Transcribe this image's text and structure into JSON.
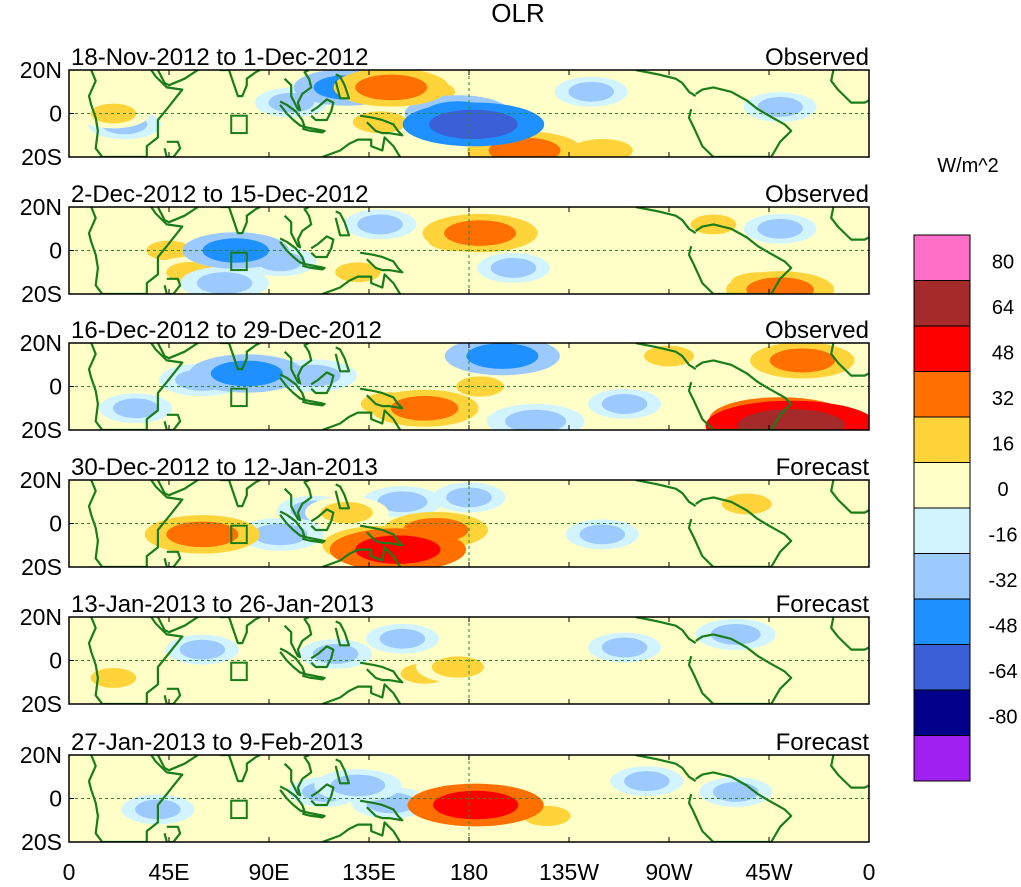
{
  "chart_data": {
    "type": "heatmap",
    "title": "OLR",
    "units_label": "W/m^2",
    "longitude_ticks": [
      "0",
      "45E",
      "90E",
      "135E",
      "180",
      "135W",
      "90W",
      "45W",
      "0"
    ],
    "longitude_values": [
      0,
      45,
      90,
      135,
      180,
      225,
      270,
      315,
      360
    ],
    "latitude_ticks": [
      "20N",
      "0",
      "20S"
    ],
    "latitude_values": [
      20,
      0,
      -20
    ],
    "xlim": [
      0,
      360
    ],
    "ylim": [
      -20,
      20
    ],
    "colorbar": {
      "levels": [
        "80",
        "64",
        "48",
        "32",
        "16",
        "0",
        "-16",
        "-32",
        "-48",
        "-64",
        "-80"
      ],
      "colors_top_to_bottom": [
        "#ff6ec7",
        "#a52a2a",
        "#ff0000",
        "#ff7000",
        "#ffd43a",
        "#ffffc8",
        "#d2f4ff",
        "#9ccaff",
        "#1e90ff",
        "#3a5fd6",
        "#00008b",
        "#a020f0"
      ]
    },
    "panels": [
      {
        "period": "18-Nov-2012 to 1-Dec-2012",
        "status": "Observed",
        "anomalies": [
          {
            "lon": 145,
            "lat": 12,
            "value": 40
          },
          {
            "lon": 160,
            "lat": 10,
            "value": 30
          },
          {
            "lon": 140,
            "lat": -4,
            "value": 24
          },
          {
            "lon": 165,
            "lat": -5,
            "value": 16
          },
          {
            "lon": 125,
            "lat": 12,
            "value": -35
          },
          {
            "lon": 175,
            "lat": 0,
            "value": -35
          },
          {
            "lon": 182,
            "lat": -5,
            "value": -55
          },
          {
            "lon": 205,
            "lat": -17,
            "value": 40
          },
          {
            "lon": 240,
            "lat": -17,
            "value": 30
          },
          {
            "lon": 235,
            "lat": 10,
            "value": -16
          },
          {
            "lon": 25,
            "lat": -5,
            "value": -16
          },
          {
            "lon": 20,
            "lat": 0,
            "value": 16
          },
          {
            "lon": 100,
            "lat": 5,
            "value": -16
          },
          {
            "lon": 320,
            "lat": 3,
            "value": -16
          }
        ]
      },
      {
        "period": "2-Dec-2012 to 15-Dec-2012",
        "status": "Observed",
        "anomalies": [
          {
            "lon": 175,
            "lat": 5,
            "value": 30
          },
          {
            "lon": 185,
            "lat": 8,
            "value": 40
          },
          {
            "lon": 75,
            "lat": 0,
            "value": -35
          },
          {
            "lon": 70,
            "lat": -15,
            "value": -25
          },
          {
            "lon": 95,
            "lat": -5,
            "value": -16
          },
          {
            "lon": 140,
            "lat": 12,
            "value": -16
          },
          {
            "lon": 45,
            "lat": 0,
            "value": 16
          },
          {
            "lon": 55,
            "lat": -10,
            "value": 20
          },
          {
            "lon": 130,
            "lat": -10,
            "value": 16
          },
          {
            "lon": 310,
            "lat": -15,
            "value": 24
          },
          {
            "lon": 320,
            "lat": -18,
            "value": 36
          },
          {
            "lon": 290,
            "lat": 12,
            "value": 16
          },
          {
            "lon": 320,
            "lat": 10,
            "value": -16
          },
          {
            "lon": 200,
            "lat": -8,
            "value": -16
          }
        ]
      },
      {
        "period": "16-Dec-2012 to 29-Dec-2012",
        "status": "Observed",
        "anomalies": [
          {
            "lon": 80,
            "lat": 6,
            "value": -40
          },
          {
            "lon": 60,
            "lat": 3,
            "value": -24
          },
          {
            "lon": 110,
            "lat": 5,
            "value": -24
          },
          {
            "lon": 195,
            "lat": 14,
            "value": -40
          },
          {
            "lon": 210,
            "lat": -16,
            "value": -30
          },
          {
            "lon": 145,
            "lat": -8,
            "value": 30
          },
          {
            "lon": 160,
            "lat": -10,
            "value": 36
          },
          {
            "lon": 185,
            "lat": 0,
            "value": 18
          },
          {
            "lon": 320,
            "lat": -15,
            "value": 55
          },
          {
            "lon": 325,
            "lat": -18,
            "value": 72
          },
          {
            "lon": 330,
            "lat": 12,
            "value": 34
          },
          {
            "lon": 270,
            "lat": 14,
            "value": 20
          },
          {
            "lon": 250,
            "lat": -8,
            "value": -16
          },
          {
            "lon": 30,
            "lat": -10,
            "value": -16
          }
        ]
      },
      {
        "period": "30-Dec-2012 to 12-Jan-2013",
        "status": "Forecast",
        "anomalies": [
          {
            "lon": 60,
            "lat": -5,
            "value": 40
          },
          {
            "lon": 95,
            "lat": -5,
            "value": -24
          },
          {
            "lon": 110,
            "lat": 6,
            "value": -16
          },
          {
            "lon": 125,
            "lat": 5,
            "value": 22
          },
          {
            "lon": 140,
            "lat": -10,
            "value": 40
          },
          {
            "lon": 148,
            "lat": -12,
            "value": 52
          },
          {
            "lon": 165,
            "lat": -3,
            "value": 34
          },
          {
            "lon": 305,
            "lat": 9,
            "value": 20
          },
          {
            "lon": 180,
            "lat": 12,
            "value": -16
          },
          {
            "lon": 240,
            "lat": -5,
            "value": -16
          },
          {
            "lon": 150,
            "lat": 10,
            "value": -20
          }
        ]
      },
      {
        "period": "13-Jan-2013 to 26-Jan-2013",
        "status": "Forecast",
        "anomalies": [
          {
            "lon": 175,
            "lat": -3,
            "value": 22
          },
          {
            "lon": 160,
            "lat": -6,
            "value": 18
          },
          {
            "lon": 120,
            "lat": 3,
            "value": -16
          },
          {
            "lon": 150,
            "lat": 10,
            "value": -16
          },
          {
            "lon": 250,
            "lat": 6,
            "value": -16
          },
          {
            "lon": 300,
            "lat": 12,
            "value": -20
          },
          {
            "lon": 60,
            "lat": 5,
            "value": -16
          },
          {
            "lon": 20,
            "lat": -8,
            "value": 16
          }
        ]
      },
      {
        "period": "27-Jan-2013 to 9-Feb-2013",
        "status": "Forecast",
        "anomalies": [
          {
            "lon": 183,
            "lat": -3,
            "value": 52
          },
          {
            "lon": 175,
            "lat": -2,
            "value": 30
          },
          {
            "lon": 130,
            "lat": 6,
            "value": -24
          },
          {
            "lon": 145,
            "lat": -2,
            "value": -20
          },
          {
            "lon": 115,
            "lat": 3,
            "value": -16
          },
          {
            "lon": 215,
            "lat": -8,
            "value": 18
          },
          {
            "lon": 260,
            "lat": 8,
            "value": -16
          },
          {
            "lon": 300,
            "lat": 3,
            "value": -16
          },
          {
            "lon": 40,
            "lat": -5,
            "value": -16
          }
        ]
      }
    ]
  }
}
